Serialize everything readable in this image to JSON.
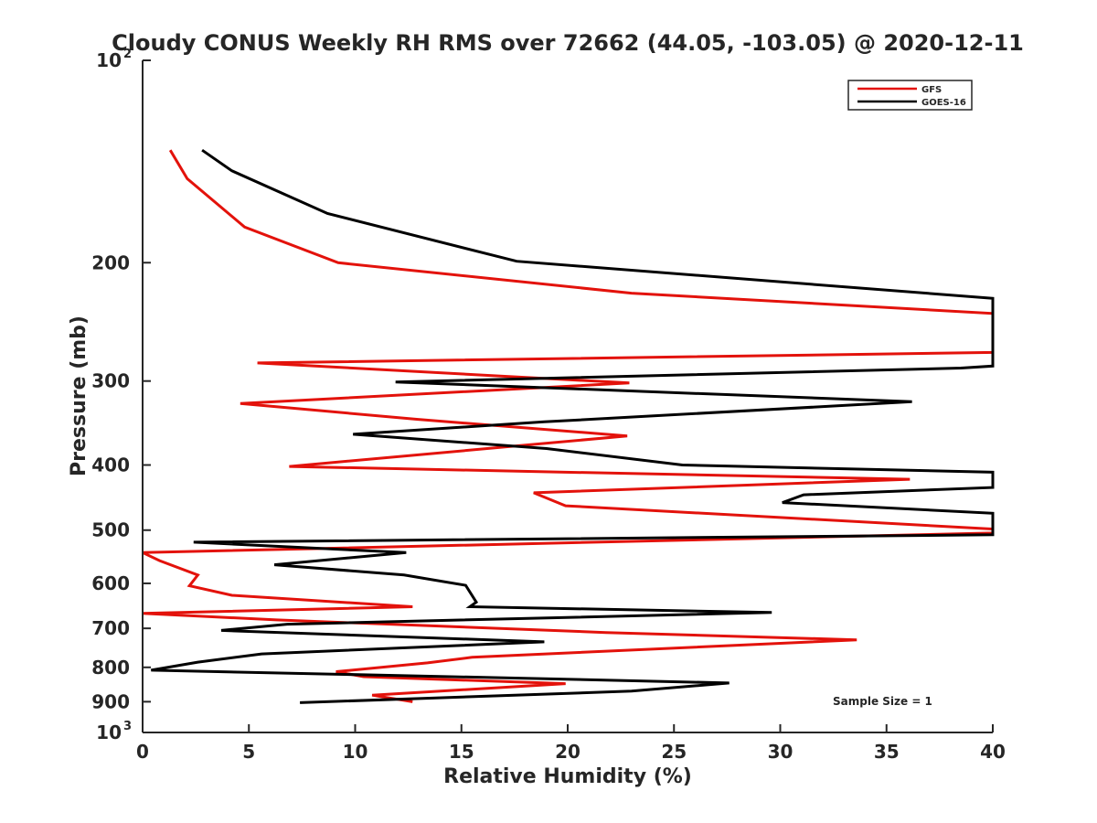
{
  "chart_data": {
    "type": "line",
    "title": "Cloudy CONUS Weekly RH RMS over 72662 (44.05, -103.05) @ 2020-12-11",
    "xlabel": "Relative Humidity (%)",
    "ylabel": "Pressure (mb)",
    "xlim": [
      0,
      40
    ],
    "ylim": [
      100,
      1000
    ],
    "yscale": "log",
    "y_reversed": true,
    "grid": false,
    "legend_position": "top-right",
    "x_ticks": [
      "0",
      "5",
      "10",
      "15",
      "20",
      "25",
      "30",
      "35",
      "40"
    ],
    "y_ticks": [
      {
        "value": 100,
        "label": "10",
        "sup": "2"
      },
      {
        "value": 200,
        "label": "200"
      },
      {
        "value": 300,
        "label": "300"
      },
      {
        "value": 400,
        "label": "400"
      },
      {
        "value": 500,
        "label": "500"
      },
      {
        "value": 600,
        "label": "600"
      },
      {
        "value": 700,
        "label": "700"
      },
      {
        "value": 800,
        "label": "800"
      },
      {
        "value": 900,
        "label": "900"
      },
      {
        "value": 1000,
        "label": "10",
        "sup": "3"
      }
    ],
    "annotation": "Sample Size = 1",
    "series": [
      {
        "name": "GFS",
        "color": "#e3120b",
        "points": [
          [
            1.3,
            136
          ],
          [
            2.1,
            150
          ],
          [
            4.8,
            177
          ],
          [
            9.2,
            200
          ],
          [
            23,
            222
          ],
          [
            40,
            238
          ],
          [
            40,
            272
          ],
          [
            5.4,
            282
          ],
          [
            22.9,
            302
          ],
          [
            4.6,
            324
          ],
          [
            12.9,
            342
          ],
          [
            22.8,
            362
          ],
          [
            6.9,
            402
          ],
          [
            36.1,
            420
          ],
          [
            18.4,
            440
          ],
          [
            19.9,
            460
          ],
          [
            40,
            498
          ],
          [
            40,
            505
          ],
          [
            0.0,
            540
          ],
          [
            0.8,
            555
          ],
          [
            2.6,
            583
          ],
          [
            2.2,
            605
          ],
          [
            4.2,
            625
          ],
          [
            12.7,
            650
          ],
          [
            0.0,
            665
          ],
          [
            6.3,
            680
          ],
          [
            21.8,
            710
          ],
          [
            33.6,
            728
          ],
          [
            15.5,
            773
          ],
          [
            13.4,
            788
          ],
          [
            9.1,
            812
          ],
          [
            10.4,
            826
          ],
          [
            19.9,
            846
          ],
          [
            10.8,
            880
          ],
          [
            12.7,
            900
          ]
        ]
      },
      {
        "name": "GOES-16",
        "color": "#000000",
        "points": [
          [
            2.8,
            136
          ],
          [
            4.2,
            146
          ],
          [
            8.7,
            169
          ],
          [
            17.6,
            199
          ],
          [
            40,
            226
          ],
          [
            40,
            285
          ],
          [
            38.5,
            287
          ],
          [
            11.9,
            301
          ],
          [
            36.2,
            322
          ],
          [
            18.9,
            345
          ],
          [
            9.9,
            360
          ],
          [
            19,
            378
          ],
          [
            25.4,
            400
          ],
          [
            40,
            410
          ],
          [
            40,
            432
          ],
          [
            31.1,
            443
          ],
          [
            30.1,
            455
          ],
          [
            40,
            472
          ],
          [
            40,
            508
          ],
          [
            2.4,
            521
          ],
          [
            12.4,
            540
          ],
          [
            6.2,
            563
          ],
          [
            12.3,
            583
          ],
          [
            15.2,
            604
          ],
          [
            15.7,
            640
          ],
          [
            15.4,
            650
          ],
          [
            29.6,
            663
          ],
          [
            6.8,
            690
          ],
          [
            3.7,
            705
          ],
          [
            18.9,
            733
          ],
          [
            5.6,
            764
          ],
          [
            2.6,
            786
          ],
          [
            0.4,
            808
          ],
          [
            19.9,
            833
          ],
          [
            27.6,
            844
          ],
          [
            23,
            868
          ],
          [
            7.4,
            903
          ]
        ]
      }
    ]
  }
}
